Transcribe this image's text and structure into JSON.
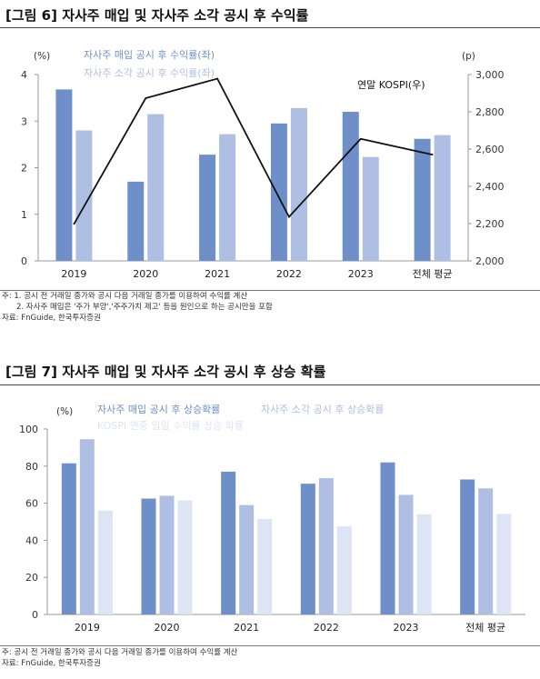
{
  "fig6": {
    "title": "[그림 6] 자사주 매입 및 자사주 소각 공시 후 수익률",
    "notes": [
      "주: 1. 공시 전 거래일 종가와 공시 다음 거래일 종가를 이용하여 수익률 계산",
      "2. 자사주 매입은 '주가 부양','주주가치 제고' 등을 원인으로 하는 공시만을 포함",
      "자료: FnGuide, 한국투자증권"
    ]
  },
  "fig7": {
    "title": "[그림 7] 자사주 매입 및 자사주 소각 공시 후 상승 확률",
    "notes": [
      "주: 공시 전 거래일 종가와 공시 다음 거래일 종가를 이용하여 수익률 계산",
      "자료: FnGuide, 한국투자증권"
    ]
  },
  "colors": {
    "dark": "#6f8fc9",
    "mid": "#aebfe3",
    "light": "#dde5f4",
    "line": "#111111",
    "axis": "#999999"
  },
  "chart_data": [
    {
      "type": "bar",
      "categories": [
        "2019",
        "2020",
        "2021",
        "2022",
        "2023",
        "전체 평균"
      ],
      "series": [
        {
          "name": "자사주 매입 공시 후 수익률(좌)",
          "axis": "left",
          "color": "#6f8fc9",
          "values": [
            3.68,
            1.7,
            2.28,
            2.95,
            3.2,
            2.62
          ]
        },
        {
          "name": "자사주 소각 공시 후 수익률(좌)",
          "axis": "left",
          "color": "#aebfe3",
          "values": [
            2.8,
            3.15,
            2.72,
            3.28,
            2.23,
            2.7
          ]
        },
        {
          "name": "연말 KOSPI(우)",
          "axis": "right",
          "type": "line",
          "color": "#111111",
          "values": [
            2198,
            2873,
            2978,
            2236,
            2655,
            2570
          ]
        }
      ],
      "yunit_left": "(%)",
      "yunit_right": "(p)",
      "ylim_left": [
        0,
        4
      ],
      "yticks_left": [
        "0",
        "1",
        "2",
        "3",
        "4"
      ],
      "ylim_right": [
        2000,
        3000
      ],
      "yticks_right": [
        "2,000",
        "2,200",
        "2,400",
        "2,600",
        "2,800",
        "3,000"
      ],
      "grid": false,
      "legend": "top-left"
    },
    {
      "type": "bar",
      "categories": [
        "2019",
        "2020",
        "2021",
        "2022",
        "2023",
        "전체 평균"
      ],
      "series": [
        {
          "name": "자사주 매입 공시 후 상승확률",
          "color": "#6f8fc9",
          "values": [
            81.5,
            62.5,
            77,
            70.5,
            82,
            72.8
          ]
        },
        {
          "name": "자사주 소각 공시 후 상승확률",
          "color": "#aebfe3",
          "values": [
            94.5,
            64,
            59,
            73.5,
            64.5,
            68
          ]
        },
        {
          "name": "KOSPI 연중 일일 수익률 상승 확률",
          "color": "#dde5f4",
          "values": [
            56,
            61.5,
            51.5,
            47.5,
            54,
            54.2
          ]
        }
      ],
      "yunit": "(%)",
      "ylim": [
        0,
        100
      ],
      "yticks": [
        "0",
        "20",
        "40",
        "60",
        "80",
        "100"
      ],
      "grid": false,
      "legend": "top"
    }
  ]
}
